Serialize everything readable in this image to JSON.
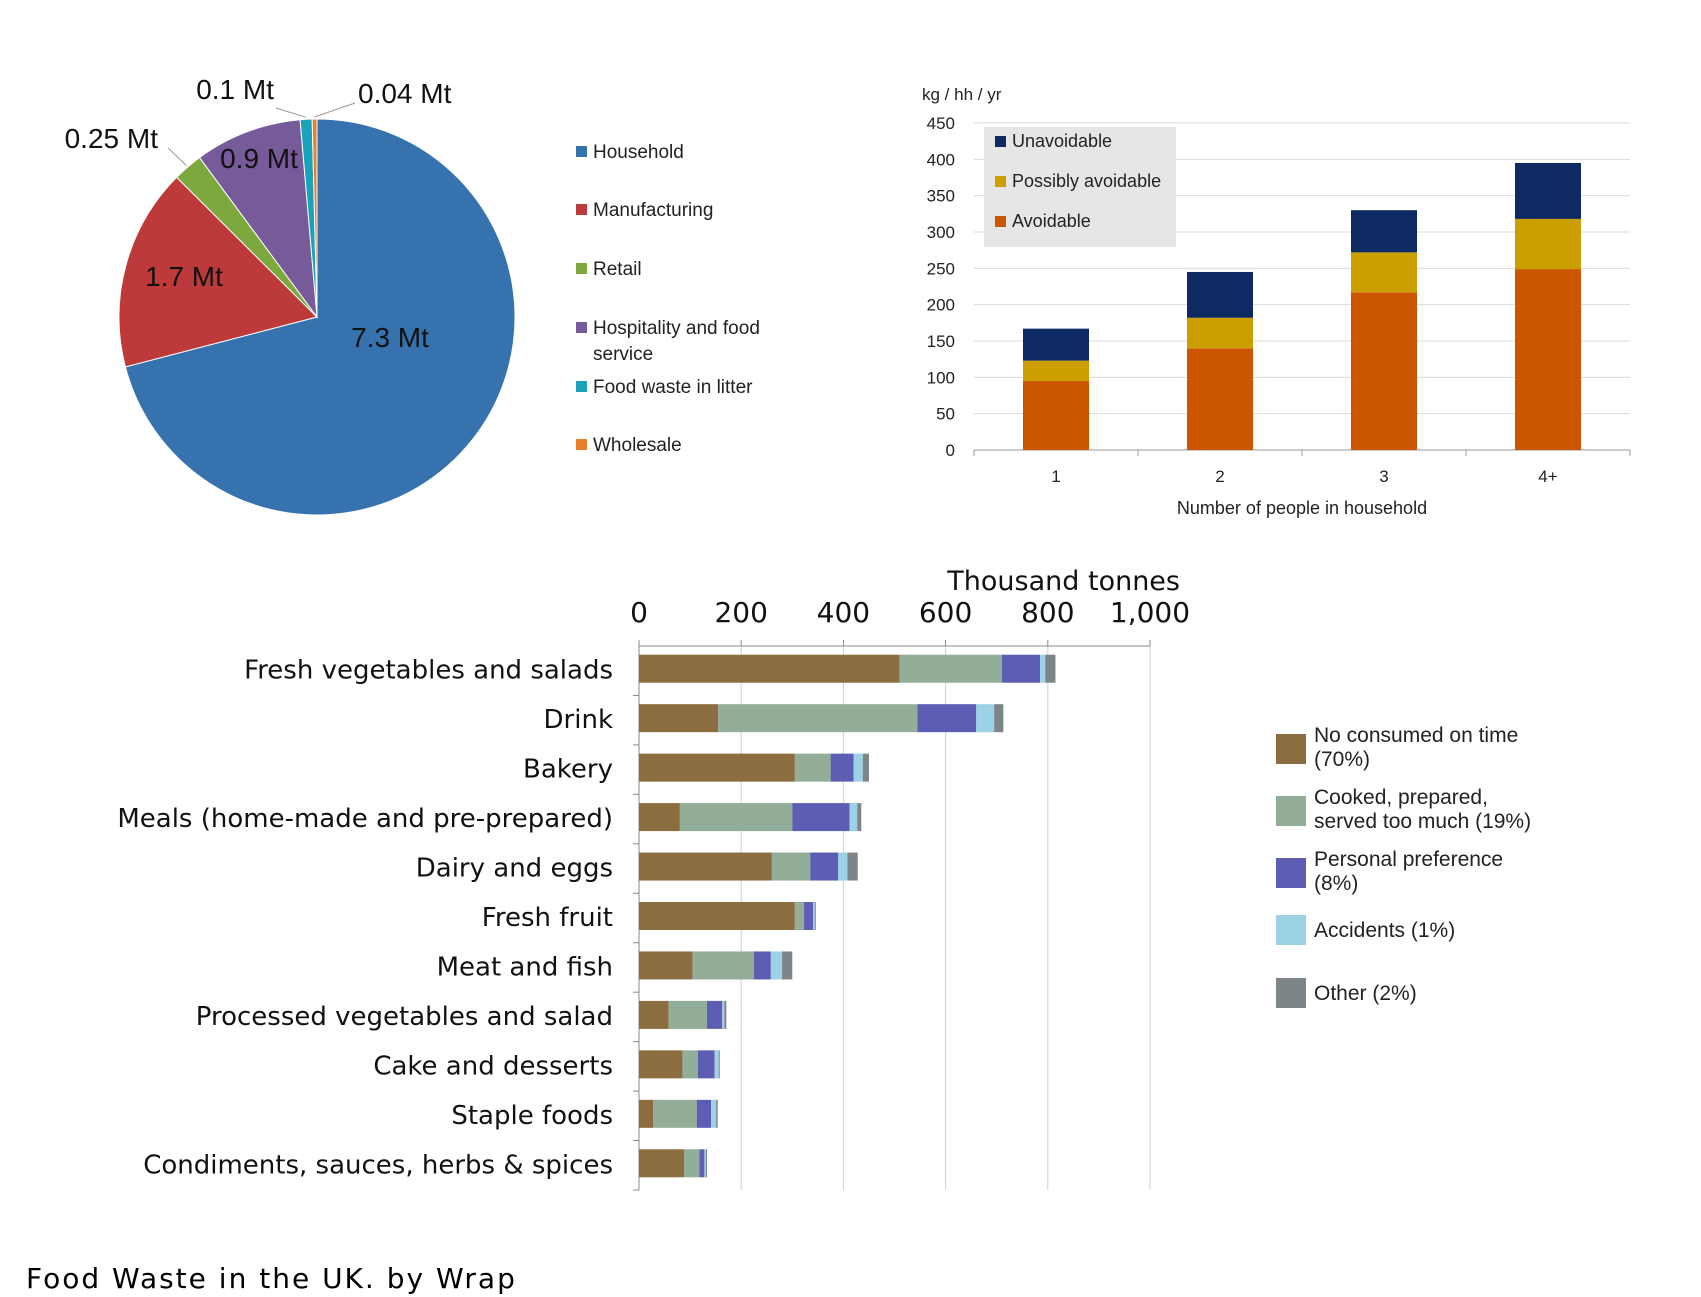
{
  "footer": {
    "title": "Food Waste in the UK. by Wrap"
  },
  "chart_data": [
    {
      "type": "pie",
      "title": "",
      "labels": [
        "Household",
        "Manufacturing",
        "Retail",
        "Hospitality and food service",
        "Food waste in litter",
        "Wholesale"
      ],
      "values": [
        7.3,
        1.7,
        0.25,
        0.9,
        0.1,
        0.04
      ],
      "value_labels": [
        "7.3 Mt",
        "1.7 Mt",
        "0.25 Mt",
        "0.9 Mt",
        "0.1 Mt",
        "0.04 Mt"
      ],
      "colors": [
        "#3672AE",
        "#BE3A3A",
        "#7DA83E",
        "#775A99",
        "#1AA3B8",
        "#E87F2A"
      ],
      "legend_position": "right",
      "legend": [
        "Household",
        "Manufacturing",
        "Retail",
        "Hospitality and food",
        "service",
        "Food waste in litter",
        "Wholesale"
      ]
    },
    {
      "type": "bar",
      "stacked": true,
      "title": "",
      "ylabel": "kg / hh / yr",
      "xlabel": "Number of people in household",
      "categories": [
        "1",
        "2",
        "3",
        "4+"
      ],
      "series": [
        {
          "name": "Avoidable",
          "values": [
            95,
            140,
            217,
            249
          ],
          "color": "#CC5500"
        },
        {
          "name": "Possibly avoidable",
          "values": [
            28,
            42,
            55,
            69
          ],
          "color": "#CC9F00"
        },
        {
          "name": "Unavoidable",
          "values": [
            44,
            63,
            58,
            77
          ],
          "color": "#0E2A63"
        }
      ],
      "legend_order": [
        "Unavoidable",
        "Possibly avoidable",
        "Avoidable"
      ],
      "ylim": [
        0,
        450
      ],
      "yticks": [
        "0",
        "50",
        "100",
        "150",
        "200",
        "250",
        "300",
        "350",
        "400",
        "450"
      ],
      "grid": true,
      "legend_position": "top-left"
    },
    {
      "type": "bar",
      "orientation": "horizontal",
      "stacked": true,
      "title": "",
      "xlabel": "Thousand tonnes",
      "xlim": [
        0,
        1000
      ],
      "xticks": [
        "0",
        "200",
        "400",
        "600",
        "800",
        "1,000"
      ],
      "categories": [
        "Fresh vegetables and salads",
        "Drink",
        "Bakery",
        "Meals (home-made and pre-prepared)",
        "Dairy and eggs",
        "Fresh fruit",
        "Meat and fish",
        "Processed vegetables and salad",
        "Cake and desserts",
        "Staple foods",
        "Condiments, sauces, herbs & spices"
      ],
      "series": [
        {
          "name": "No consumed on time (70%)",
          "values": [
            510,
            155,
            305,
            80,
            260,
            305,
            105,
            58,
            85,
            28,
            88
          ],
          "color": "#8B6D3F"
        },
        {
          "name": "Cooked, prepared, served too much (19%)",
          "values": [
            200,
            390,
            70,
            220,
            75,
            18,
            120,
            75,
            30,
            85,
            30
          ],
          "color": "#93AE98"
        },
        {
          "name": "Personal preference (8%)",
          "values": [
            75,
            115,
            45,
            112,
            55,
            18,
            33,
            30,
            33,
            28,
            10
          ],
          "color": "#5D5EB3"
        },
        {
          "name": "Accidents (1%)",
          "values": [
            10,
            35,
            18,
            15,
            18,
            3,
            22,
            4,
            8,
            10,
            3
          ],
          "color": "#9CD2E6"
        },
        {
          "name": "Other (2%)",
          "values": [
            20,
            18,
            12,
            8,
            20,
            2,
            20,
            4,
            2,
            3,
            2
          ],
          "color": "#7E8588"
        }
      ],
      "legend": [
        "No consumed on time",
        "(70%)",
        "Cooked, prepared,",
        "served too much (19%)",
        "Personal preference",
        "(8%)",
        "Accidents (1%)",
        "Other (2%)"
      ],
      "grid": true,
      "legend_position": "right"
    }
  ]
}
